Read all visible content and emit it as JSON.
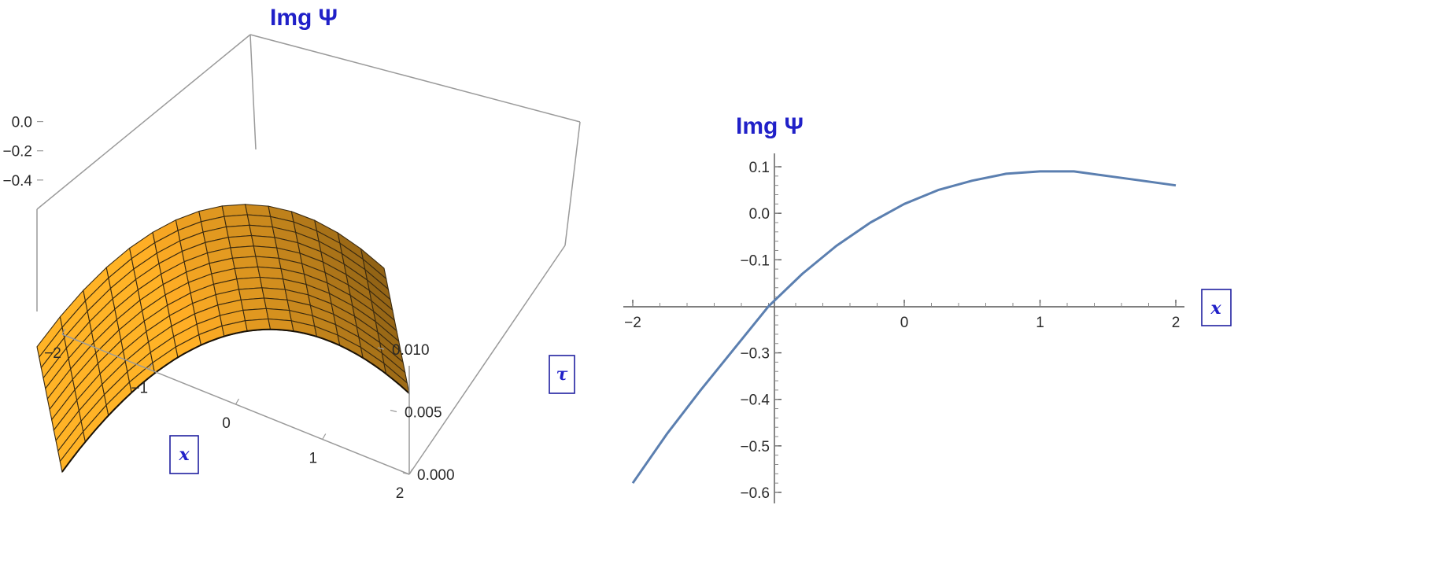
{
  "chart_data": [
    {
      "type": "surface",
      "title": "Img Ψ",
      "xlabel": "x",
      "ylabel": "τ",
      "x_ticks": [
        "−2",
        "−1",
        "0",
        "1",
        "2"
      ],
      "y_ticks": [
        "0.000",
        "0.005",
        "0.010"
      ],
      "z_ticks": [
        "0.0",
        "−0.2",
        "−0.4"
      ],
      "x_range": [
        -2,
        2
      ],
      "y_range": [
        0,
        0.01
      ],
      "z_range": [
        -0.6,
        0.1
      ],
      "mesh_lines": 15,
      "surface_color": "#f5a623",
      "mesh_color": "#3a2a10",
      "box_color": "#9a9a9a",
      "sample_profile": {
        "x": [
          -2,
          -1.5,
          -1,
          -0.5,
          0,
          0.5,
          1,
          1.5,
          2
        ],
        "z": [
          -0.58,
          -0.38,
          -0.2,
          -0.07,
          0.02,
          0.07,
          0.09,
          0.08,
          0.06
        ]
      }
    },
    {
      "type": "line",
      "title": "Img Ψ",
      "xlabel": "x",
      "ylabel": "",
      "xlim": [
        -2,
        2
      ],
      "ylim": [
        -0.6,
        0.1
      ],
      "x_ticks": [
        "−2",
        "0",
        "1",
        "2"
      ],
      "y_ticks": [
        "0.1",
        "0.0",
        "−0.1",
        "−0.3",
        "−0.4",
        "−0.5",
        "−0.6"
      ],
      "line_color": "#5b7fb0",
      "series": [
        {
          "x": [
            -2,
            -1.75,
            -1.5,
            -1.25,
            -1,
            -0.75,
            -0.5,
            -0.25,
            0,
            0.25,
            0.5,
            0.75,
            1,
            1.25,
            1.5,
            1.75,
            2
          ],
          "y": [
            -0.58,
            -0.475,
            -0.38,
            -0.29,
            -0.2,
            -0.13,
            -0.07,
            -0.02,
            0.02,
            0.05,
            0.07,
            0.085,
            0.09,
            0.09,
            0.08,
            0.07,
            0.06
          ]
        }
      ]
    }
  ]
}
